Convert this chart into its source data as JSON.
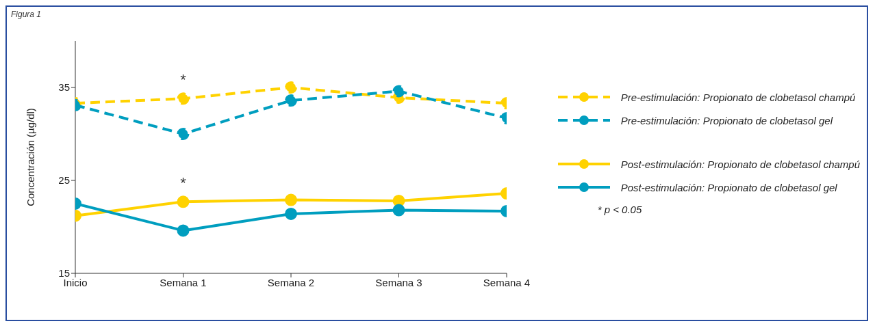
{
  "chart_data": {
    "type": "line",
    "title": "Figura 1",
    "ylabel": "Concentración (µg/dl)",
    "categories": [
      "Inicio",
      "Semana 1",
      "Semana 2",
      "Semana 3",
      "Semana 4"
    ],
    "series": [
      {
        "name": "Pre-estimulación: Propionato de clobetasol champú",
        "color": "#ffd200",
        "line_style": "dashed",
        "values": [
          33.3,
          33.8,
          35.0,
          33.9,
          33.3
        ]
      },
      {
        "name": "Pre-estimulación: Propionato de clobetasol gel",
        "color": "#009ebf",
        "line_style": "dashed",
        "values": [
          33.1,
          30.0,
          33.6,
          34.6,
          31.7
        ]
      },
      {
        "name": "Post-estimulación: Propionato de clobetasol champú",
        "color": "#ffd200",
        "line_style": "solid",
        "values": [
          21.2,
          22.7,
          22.9,
          22.8,
          23.6
        ]
      },
      {
        "name": "Post-estimulación: Propionato de clobetasol gel",
        "color": "#009ebf",
        "line_style": "solid",
        "values": [
          22.5,
          19.6,
          21.4,
          21.8,
          21.7
        ]
      }
    ],
    "ylim": [
      15,
      40
    ],
    "yticks": [
      15,
      25,
      35
    ],
    "grid": false,
    "marker": "circle",
    "legend": "right",
    "annotations": [
      {
        "text": "*",
        "x": "Semana 1",
        "y": 33.8
      },
      {
        "text": "*",
        "x": "Semana 1",
        "y": 22.7
      },
      "* p < 0.05"
    ]
  }
}
